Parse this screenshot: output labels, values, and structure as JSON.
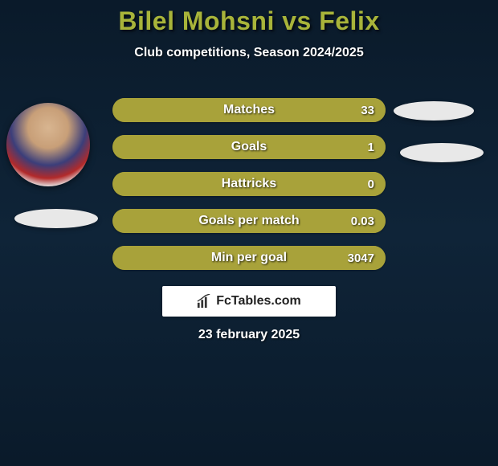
{
  "background": {
    "gradient_top": "#0a1a2a",
    "gradient_mid": "#0f2438",
    "gradient_bottom": "#0a1a2a"
  },
  "title": {
    "text": "Bilel Mohsni vs Felix",
    "color": "#a8b43a",
    "fontsize": 32
  },
  "subtitle": {
    "text": "Club competitions, Season 2024/2025",
    "color": "#ffffff",
    "fontsize": 16
  },
  "avatar": {
    "left_present": true
  },
  "ovals": {
    "bg": "#e8e8e8"
  },
  "stats": {
    "bar_bg": "#a8a23a",
    "bar_fill": "#a8a23a",
    "label_color": "#ffffff",
    "label_fontsize": 16,
    "value_fontsize": 15,
    "rows": [
      {
        "label": "Matches",
        "value": "33",
        "fill_pct": 100
      },
      {
        "label": "Goals",
        "value": "1",
        "fill_pct": 100
      },
      {
        "label": "Hattricks",
        "value": "0",
        "fill_pct": 100
      },
      {
        "label": "Goals per match",
        "value": "0.03",
        "fill_pct": 100
      },
      {
        "label": "Min per goal",
        "value": "3047",
        "fill_pct": 100
      }
    ]
  },
  "logo": {
    "text": "FcTables.com",
    "text_color": "#222222",
    "fontsize": 16,
    "icon_color": "#333333",
    "box_bg": "#ffffff"
  },
  "date": {
    "text": "23 february 2025",
    "color": "#ffffff",
    "fontsize": 16
  }
}
